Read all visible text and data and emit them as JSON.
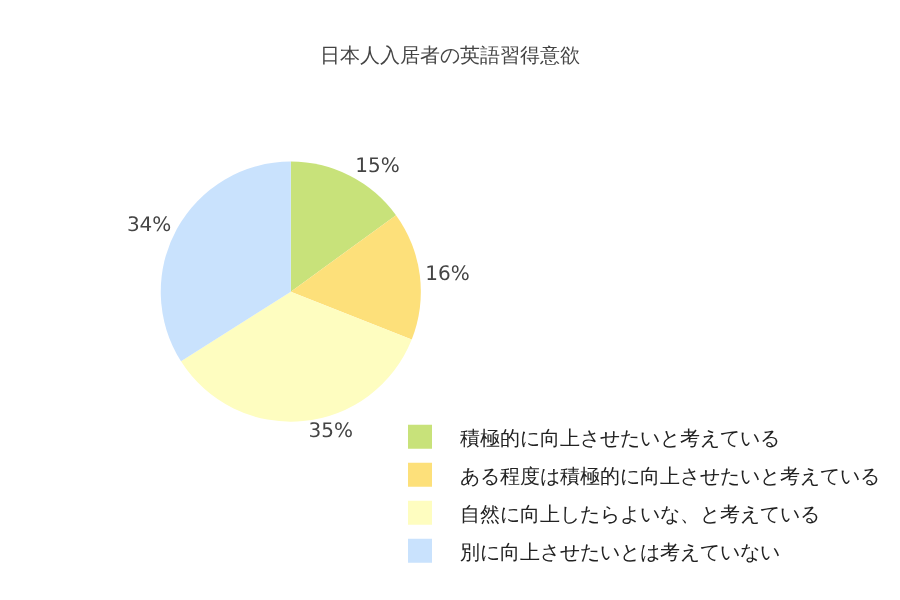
{
  "chart_data": {
    "type": "pie",
    "title": "日本人入居者の英語習得意欲",
    "categories": [
      "積極的に向上させたいと考えている",
      "ある程度は積極的に向上させたいと考えている",
      "自然に向上したらよいな、と考えている",
      "別に向上させたいとは考えていない"
    ],
    "values": [
      15,
      16,
      35,
      34
    ],
    "value_labels": [
      "15%",
      "16%",
      "35%",
      "34%"
    ],
    "colors": [
      "#c8e27a",
      "#fde07a",
      "#fefdc0",
      "#c9e2fd"
    ],
    "legend": "bottom right"
  }
}
